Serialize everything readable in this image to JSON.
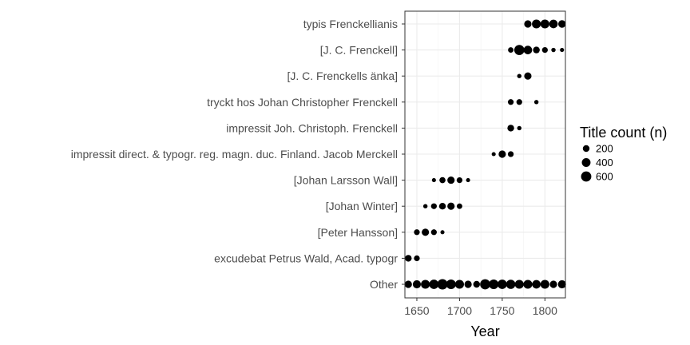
{
  "chart_data": {
    "type": "scatter",
    "xlabel": "Year",
    "ylabel": "",
    "xlim": [
      1636,
      1824
    ],
    "xticks": [
      1650,
      1700,
      1750,
      1800
    ],
    "grid": true,
    "legend": {
      "title": "Title count (n)",
      "position": "right",
      "entries": [
        {
          "label": "200",
          "value": 200
        },
        {
          "label": "400",
          "value": 400
        },
        {
          "label": "600",
          "value": 600
        }
      ]
    },
    "categories": [
      "typis Frenckellianis",
      "[J. C. Frenckell]",
      "[J. C. Frenckells änka]",
      "tryckt hos Johan Christopher Frenckell",
      "impressit Joh. Christoph. Frenckell",
      "impressit direct. & typogr. reg. magn. duc. Finland. Jacob Merckell",
      "[Johan Larsson Wall]",
      "[Johan Winter]",
      "[Peter Hansson]",
      "excudebat Petrus Wald, Acad. typogr",
      "Other"
    ],
    "points": [
      {
        "category": "typis Frenckellianis",
        "x": 1780,
        "n": 250
      },
      {
        "category": "typis Frenckellianis",
        "x": 1790,
        "n": 420
      },
      {
        "category": "typis Frenckellianis",
        "x": 1800,
        "n": 420
      },
      {
        "category": "typis Frenckellianis",
        "x": 1810,
        "n": 380
      },
      {
        "category": "typis Frenckellianis",
        "x": 1820,
        "n": 270
      },
      {
        "category": "[J. C. Frenckell]",
        "x": 1760,
        "n": 110
      },
      {
        "category": "[J. C. Frenckell]",
        "x": 1770,
        "n": 580
      },
      {
        "category": "[J. C. Frenckell]",
        "x": 1780,
        "n": 380
      },
      {
        "category": "[J. C. Frenckell]",
        "x": 1790,
        "n": 200
      },
      {
        "category": "[J. C. Frenckell]",
        "x": 1800,
        "n": 130
      },
      {
        "category": "[J. C. Frenckell]",
        "x": 1810,
        "n": 50
      },
      {
        "category": "[J. C. Frenckell]",
        "x": 1820,
        "n": 40
      },
      {
        "category": "[J. C. Frenckells änka]",
        "x": 1770,
        "n": 50
      },
      {
        "category": "[J. C. Frenckells änka]",
        "x": 1780,
        "n": 250
      },
      {
        "category": "tryckt hos Johan Christopher Frenckell",
        "x": 1760,
        "n": 130
      },
      {
        "category": "tryckt hos Johan Christopher Frenckell",
        "x": 1770,
        "n": 130
      },
      {
        "category": "tryckt hos Johan Christopher Frenckell",
        "x": 1790,
        "n": 50
      },
      {
        "category": "impressit Joh. Christoph. Frenckell",
        "x": 1760,
        "n": 200
      },
      {
        "category": "impressit Joh. Christoph. Frenckell",
        "x": 1770,
        "n": 50
      },
      {
        "category": "impressit direct. & typogr. reg. magn. duc. Finland. Jacob Merckell",
        "x": 1740,
        "n": 40
      },
      {
        "category": "impressit direct. & typogr. reg. magn. duc. Finland. Jacob Merckell",
        "x": 1750,
        "n": 250
      },
      {
        "category": "impressit direct. & typogr. reg. magn. duc. Finland. Jacob Merckell",
        "x": 1760,
        "n": 130
      },
      {
        "category": "[Johan Larsson Wall]",
        "x": 1670,
        "n": 40
      },
      {
        "category": "[Johan Larsson Wall]",
        "x": 1680,
        "n": 150
      },
      {
        "category": "[Johan Larsson Wall]",
        "x": 1690,
        "n": 250
      },
      {
        "category": "[Johan Larsson Wall]",
        "x": 1700,
        "n": 130
      },
      {
        "category": "[Johan Larsson Wall]",
        "x": 1710,
        "n": 40
      },
      {
        "category": "[Johan Winter]",
        "x": 1660,
        "n": 50
      },
      {
        "category": "[Johan Winter]",
        "x": 1670,
        "n": 130
      },
      {
        "category": "[Johan Winter]",
        "x": 1680,
        "n": 200
      },
      {
        "category": "[Johan Winter]",
        "x": 1690,
        "n": 250
      },
      {
        "category": "[Johan Winter]",
        "x": 1700,
        "n": 110
      },
      {
        "category": "[Peter Hansson]",
        "x": 1650,
        "n": 130
      },
      {
        "category": "[Peter Hansson]",
        "x": 1660,
        "n": 250
      },
      {
        "category": "[Peter Hansson]",
        "x": 1670,
        "n": 130
      },
      {
        "category": "[Peter Hansson]",
        "x": 1680,
        "n": 40
      },
      {
        "category": "excudebat Petrus Wald, Acad. typogr",
        "x": 1640,
        "n": 200
      },
      {
        "category": "excudebat Petrus Wald, Acad. typogr",
        "x": 1650,
        "n": 130
      },
      {
        "category": "Other",
        "x": 1640,
        "n": 250
      },
      {
        "category": "Other",
        "x": 1650,
        "n": 330
      },
      {
        "category": "Other",
        "x": 1660,
        "n": 420
      },
      {
        "category": "Other",
        "x": 1670,
        "n": 480
      },
      {
        "category": "Other",
        "x": 1680,
        "n": 620
      },
      {
        "category": "Other",
        "x": 1690,
        "n": 520
      },
      {
        "category": "Other",
        "x": 1700,
        "n": 420
      },
      {
        "category": "Other",
        "x": 1710,
        "n": 250
      },
      {
        "category": "Other",
        "x": 1720,
        "n": 200
      },
      {
        "category": "Other",
        "x": 1730,
        "n": 580
      },
      {
        "category": "Other",
        "x": 1740,
        "n": 520
      },
      {
        "category": "Other",
        "x": 1750,
        "n": 480
      },
      {
        "category": "Other",
        "x": 1760,
        "n": 460
      },
      {
        "category": "Other",
        "x": 1770,
        "n": 420
      },
      {
        "category": "Other",
        "x": 1780,
        "n": 420
      },
      {
        "category": "Other",
        "x": 1790,
        "n": 380
      },
      {
        "category": "Other",
        "x": 1800,
        "n": 420
      },
      {
        "category": "Other",
        "x": 1810,
        "n": 250
      },
      {
        "category": "Other",
        "x": 1820,
        "n": 330
      }
    ]
  }
}
